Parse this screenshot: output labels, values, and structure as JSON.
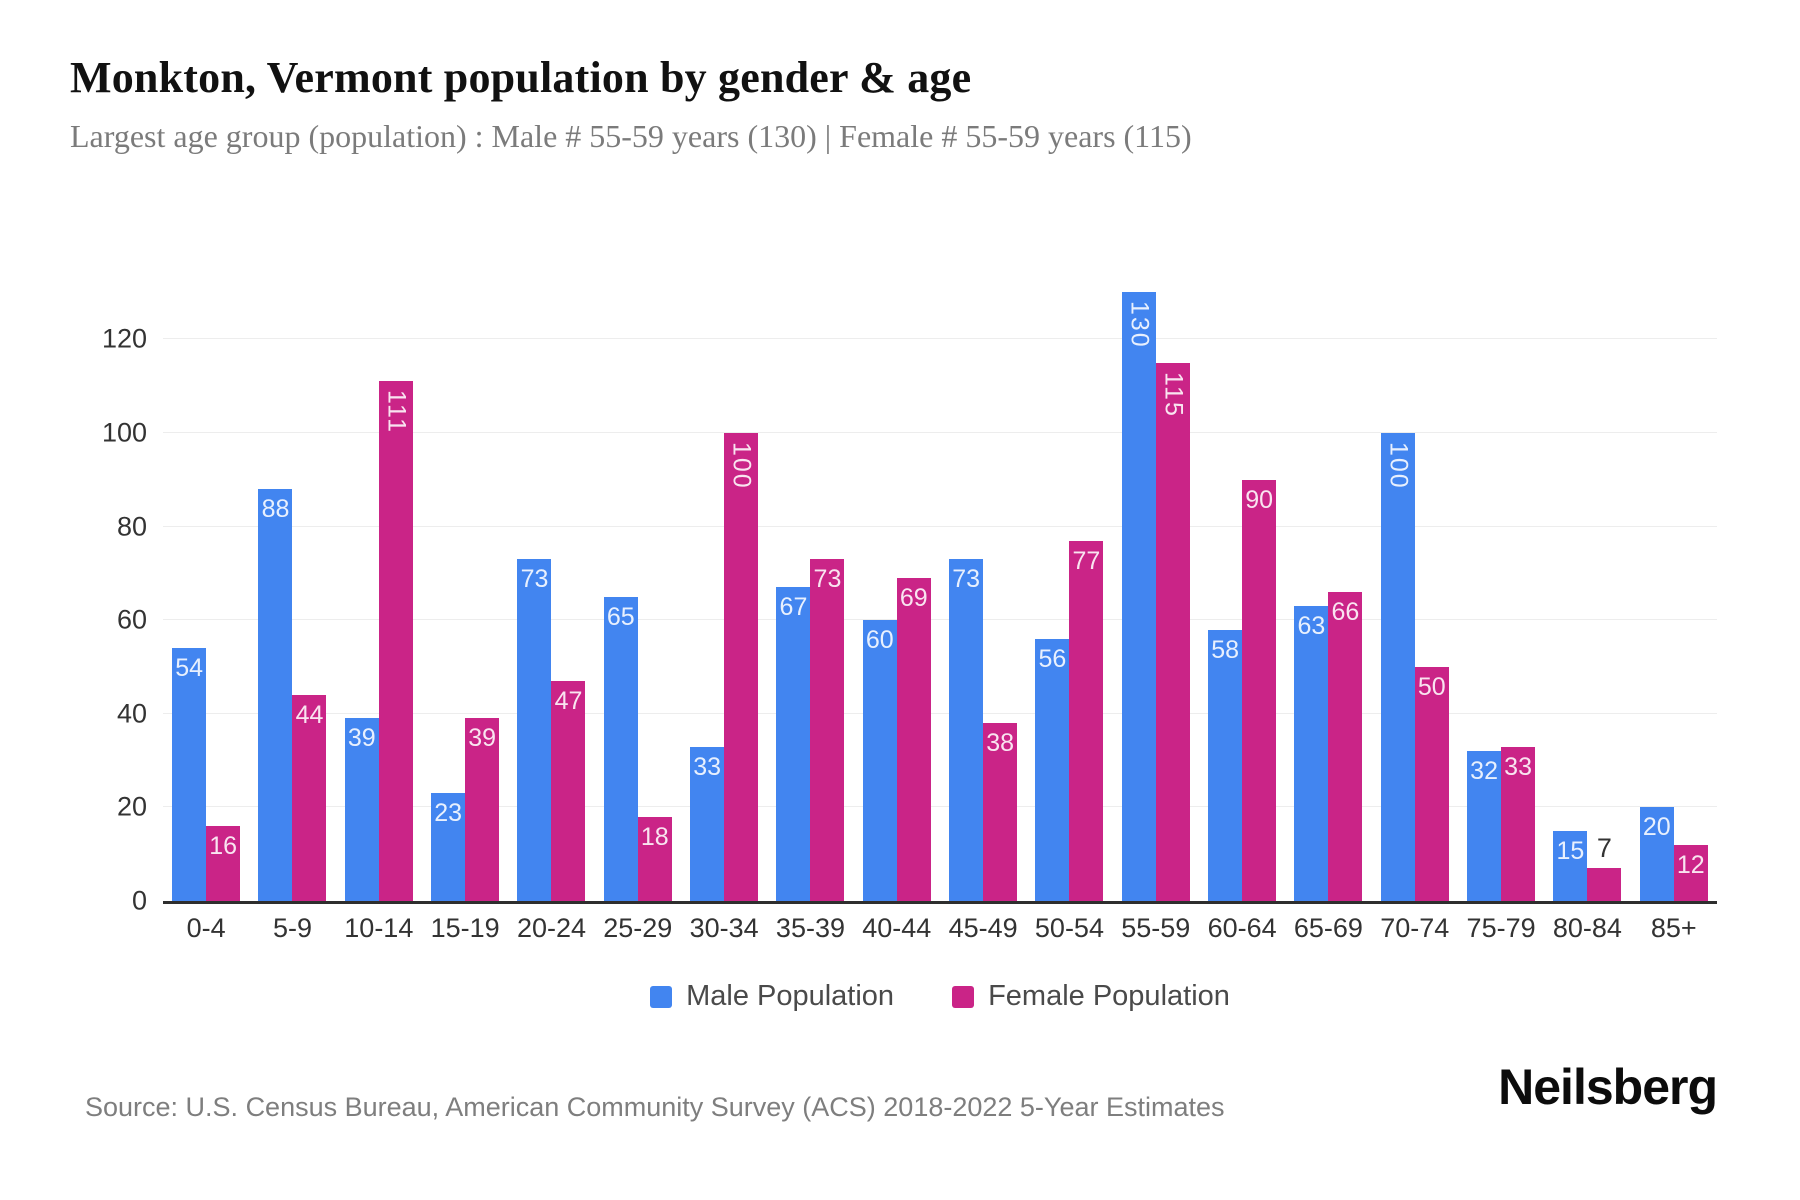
{
  "page": {
    "title": "Monkton, Vermont population by gender & age",
    "subtitle": "Largest age group (population) : Male # 55-59 years (130) | Female # 55-59 years (115)",
    "source": "Source: U.S. Census Bureau, American Community Survey (ACS) 2018-2022 5-Year Estimates",
    "brand": "Neilsberg"
  },
  "colors": {
    "male": "#4285f0",
    "female": "#ca2487",
    "axis_line": "#2e2e2e",
    "grid_line": "#ededed",
    "tick_text": "#333333",
    "bar_value_text": "rgba(255,255,255,0.88)"
  },
  "chart_data": {
    "type": "bar",
    "title": "Monkton, Vermont population by gender & age",
    "categories": [
      "0-4",
      "5-9",
      "10-14",
      "15-19",
      "20-24",
      "25-29",
      "30-34",
      "35-39",
      "40-44",
      "45-49",
      "50-54",
      "55-59",
      "60-64",
      "65-69",
      "70-74",
      "75-79",
      "80-84",
      "85+"
    ],
    "series": [
      {
        "name": "Male Population",
        "color": "#4285f0",
        "values": [
          54,
          88,
          39,
          23,
          73,
          65,
          33,
          67,
          60,
          73,
          56,
          130,
          58,
          63,
          100,
          32,
          15,
          20
        ]
      },
      {
        "name": "Female Population",
        "color": "#ca2487",
        "values": [
          16,
          44,
          111,
          39,
          47,
          18,
          100,
          73,
          69,
          38,
          77,
          115,
          90,
          66,
          50,
          33,
          7,
          12
        ]
      }
    ],
    "xlabel": "",
    "ylabel": "",
    "ylim": [
      0,
      138
    ],
    "yticks": [
      0,
      20,
      40,
      60,
      80,
      100,
      120
    ],
    "grid": true,
    "legend_position": "bottom",
    "value_labels": "inside-top, rotated vertical when >= 100, dark above bar when bar too short"
  }
}
